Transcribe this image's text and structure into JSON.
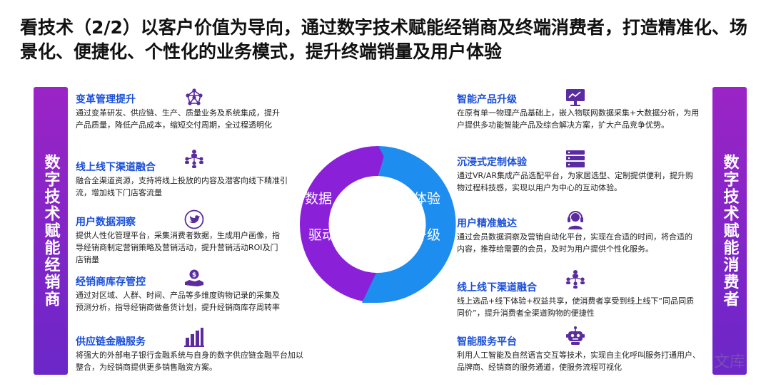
{
  "title": "看技术（2/2）以客户价值为导向，通过数字技术赋能经销商及终端消费者，打造精准化、场景化、便捷化、个性化的业务模式，提升终端销量及用户体验",
  "left_bar": "数字技术赋能经销商",
  "right_bar": "数字技术赋能消费者",
  "cycle": {
    "left_top": "数据",
    "left_bottom": "驱动",
    "right_top": "体验",
    "right_bottom": "升级"
  },
  "left_items": [
    {
      "title": "变革管理提升",
      "desc": "通过变革研发、供应链、生产、质量业务及系统集成，提升产品质量，降低产品成本，缩短交付周期，全过程透明化",
      "icon": "network-icon"
    },
    {
      "title": "线上线下渠道融合",
      "desc": "融合全渠道资源，支持将线上投放的内容及潜客向线下精准引流，增加线下门店客流量",
      "icon": "people-connect-icon"
    },
    {
      "title": "用户数据洞察",
      "desc": "提供人性化管理平台，采集消费者数据，生成用户画像，指导经销商制定营销策略及营销活动，提升营销活动ROI及门店销量",
      "icon": "bird-icon"
    },
    {
      "title": "经销商库存管控",
      "desc": "通过对区域、人群、时间、产品等多维度购物记录的采集及预测分析，指导经销商做备货计划，提升经销商库存周转率",
      "icon": "hand-money-icon"
    },
    {
      "title": "供应链金融服务",
      "desc": "将强大的外部电子银行金融系统与自身的数字供应链金融平台加以整合，为经销商提供更多销售融资方案。",
      "icon": "bar-chart-icon"
    }
  ],
  "right_items": [
    {
      "title": "智能产品升级",
      "desc": "在原有单一物理产品基础上，嵌入物联网数据采集+大数据分析，为用户提供多功能智能产品及综合解决方案，扩大产品竞争优势。",
      "icon": "monitor-chart-icon"
    },
    {
      "title": "沉浸式定制体验",
      "desc": "通过VR/AR集成产品选配平台，为家居选型、定制提供便利，提升购物过程科技感，实现以用户为中心的互动体验。",
      "icon": "server-icon"
    },
    {
      "title": "用户精准触达",
      "desc": "通过会员数据洞察及营销自动化平台，实现在合适的时间，将合适的内容，推荐给需要的会员，及时为用户提供个性化服务。",
      "icon": "headset-icon"
    },
    {
      "title": "线上线下渠道融合",
      "desc": "线上选品+线下体验+权益共享，使消费者享受到线上线下“同品同质同价”，提升消费者全渠道购物的便捷性",
      "icon": "people-connect-icon"
    },
    {
      "title": "智能服务平台",
      "desc": "利用人工智能及自然语言交互等技术，实现自主化呼叫服务打通用户、品牌商、经销商的服务通道，使服务流程可视化",
      "icon": "robot-icon"
    }
  ],
  "watermark": "文库",
  "colors": {
    "purple": "#8a2be2",
    "blue": "#1e8df0",
    "title_blue": "#1a4fd8"
  }
}
